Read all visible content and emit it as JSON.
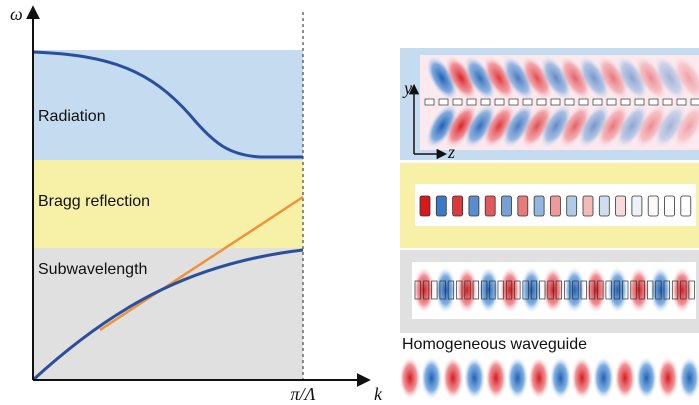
{
  "axes": {
    "y_label": "ω",
    "x_label": "k",
    "x_mark": "π/Λ"
  },
  "regions": [
    "Radiation",
    "Bragg reflection",
    "Subwavelength"
  ],
  "inset_axes": {
    "y": "y",
    "z": "z"
  },
  "panels": {
    "homogeneous": "Homogeneous waveguide"
  }
}
